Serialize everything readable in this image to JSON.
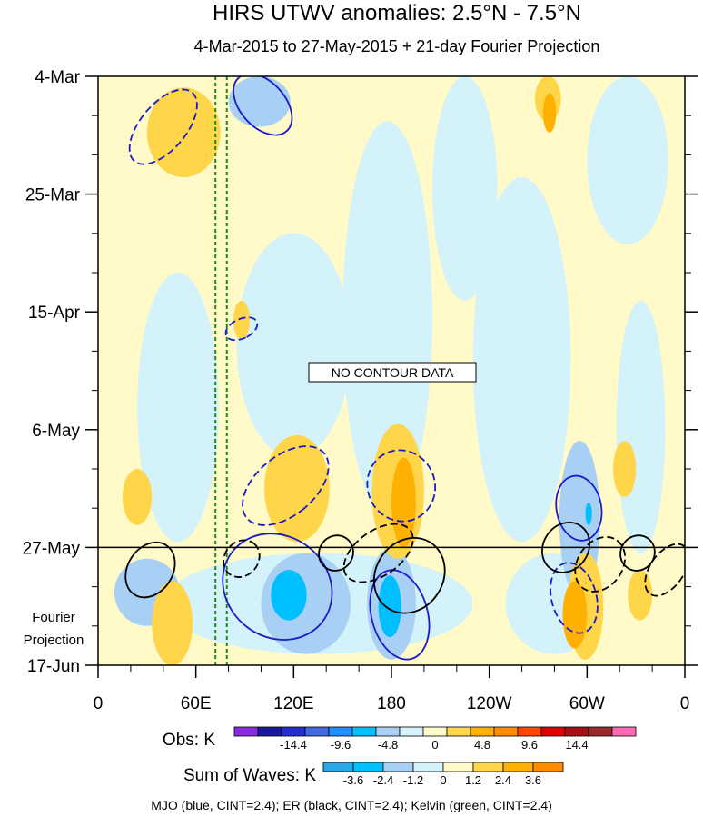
{
  "chart_data": {
    "type": "heatmap",
    "title": "HIRS UTWV anomalies: 2.5°N - 7.5°N",
    "subtitle": "4-Mar-2015 to 27-May-2015 + 21-day Fourier Projection",
    "xlabel": "",
    "ylabel": "",
    "x_ticks": [
      "0",
      "60E",
      "120E",
      "180",
      "120W",
      "60W",
      "0"
    ],
    "x_tick_values": [
      0,
      60,
      120,
      180,
      240,
      300,
      360
    ],
    "xlim": [
      0,
      360
    ],
    "y_ticks": [
      "4-Mar",
      "25-Mar",
      "15-Apr",
      "6-May",
      "27-May",
      "17-Jun"
    ],
    "y_tick_values": [
      0,
      21,
      42,
      63,
      84,
      105
    ],
    "ylim": [
      0,
      105
    ],
    "projection_label_lines": [
      "Fourier",
      "Projection"
    ],
    "projection_start_day": 84,
    "no_data_label": "NO CONTOUR DATA",
    "kelvin_reference_lines_lon": [
      72,
      79
    ],
    "obs_colorbar": {
      "label": "Obs: K",
      "tick_labels": [
        "-14.4",
        "-9.6",
        "-4.8",
        "0",
        "4.8",
        "9.6",
        "14.4"
      ],
      "colors": [
        "#8a2be2",
        "#1a1aa0",
        "#2030d0",
        "#4169e1",
        "#1e90ff",
        "#00bfff",
        "#a8d0f5",
        "#d4f2fa",
        "#fffac8",
        "#ffd54a",
        "#ffb000",
        "#ff8c00",
        "#ff4500",
        "#e00000",
        "#a50f15",
        "#9c2a2a",
        "#ff69b4"
      ]
    },
    "waves_colorbar": {
      "label": "Sum of Waves: K",
      "tick_labels": [
        "-3.6",
        "-2.4",
        "-1.2",
        "0",
        "1.2",
        "2.4",
        "3.6"
      ],
      "colors": [
        "#2aa7e8",
        "#00bfff",
        "#a8d0f5",
        "#d4f2fa",
        "#fffac8",
        "#ffd54a",
        "#ffb000",
        "#ff8c00"
      ]
    },
    "footer": "MJO (blue, CINT=2.4); ER (black, CINT=2.4); Kelvin (green, CINT=2.4)",
    "anomaly_patches": [
      {
        "lon": 0,
        "day": 0,
        "w": 360,
        "h": 105,
        "color": "#fffac8",
        "kind": "base"
      },
      {
        "lon": 24,
        "day": 35,
        "w": 50,
        "h": 48,
        "color": "#d4f2fa"
      },
      {
        "lon": 85,
        "day": 28,
        "w": 70,
        "h": 40,
        "color": "#d4f2fa"
      },
      {
        "lon": 150,
        "day": 8,
        "w": 55,
        "h": 70,
        "color": "#d4f2fa"
      },
      {
        "lon": 205,
        "day": 0,
        "w": 40,
        "h": 40,
        "color": "#d4f2fa"
      },
      {
        "lon": 230,
        "day": 18,
        "w": 60,
        "h": 65,
        "color": "#d4f2fa"
      },
      {
        "lon": 300,
        "day": 0,
        "w": 50,
        "h": 30,
        "color": "#d4f2fa"
      },
      {
        "lon": 318,
        "day": 40,
        "w": 30,
        "h": 45,
        "color": "#d4f2fa"
      },
      {
        "lon": 40,
        "day": 85,
        "w": 190,
        "h": 18,
        "color": "#d4f2fa"
      },
      {
        "lon": 250,
        "day": 85,
        "w": 60,
        "h": 18,
        "color": "#d4f2fa"
      },
      {
        "lon": 10,
        "day": 86,
        "w": 40,
        "h": 12,
        "color": "#a8d0f5"
      },
      {
        "lon": 100,
        "day": 85,
        "w": 55,
        "h": 18,
        "color": "#a8d0f5"
      },
      {
        "lon": 165,
        "day": 84,
        "w": 30,
        "h": 20,
        "color": "#a8d0f5"
      },
      {
        "lon": 283,
        "day": 65,
        "w": 25,
        "h": 28,
        "color": "#a8d0f5"
      },
      {
        "lon": 80,
        "day": 0,
        "w": 38,
        "h": 9,
        "color": "#a8d0f5"
      },
      {
        "lon": 106,
        "day": 88,
        "w": 22,
        "h": 9,
        "color": "#00bfff"
      },
      {
        "lon": 172,
        "day": 89,
        "w": 14,
        "h": 11,
        "color": "#00bfff"
      },
      {
        "lon": 299,
        "day": 76,
        "w": 4,
        "h": 4,
        "color": "#00bfff"
      },
      {
        "lon": 30,
        "day": 2,
        "w": 45,
        "h": 16,
        "color": "#ffd54a"
      },
      {
        "lon": 83,
        "day": 40,
        "w": 10,
        "h": 7,
        "color": "#ffd54a"
      },
      {
        "lon": 102,
        "day": 64,
        "w": 40,
        "h": 19,
        "color": "#ffd54a"
      },
      {
        "lon": 168,
        "day": 62,
        "w": 32,
        "h": 24,
        "color": "#ffd54a"
      },
      {
        "lon": 15,
        "day": 70,
        "w": 18,
        "h": 10,
        "color": "#ffd54a"
      },
      {
        "lon": 33,
        "day": 90,
        "w": 25,
        "h": 15,
        "color": "#ffd54a"
      },
      {
        "lon": 288,
        "day": 85,
        "w": 22,
        "h": 19,
        "color": "#ffd54a"
      },
      {
        "lon": 325,
        "day": 88,
        "w": 15,
        "h": 9,
        "color": "#ffd54a"
      },
      {
        "lon": 316,
        "day": 65,
        "w": 14,
        "h": 10,
        "color": "#ffd54a"
      },
      {
        "lon": 268,
        "day": 0,
        "w": 16,
        "h": 8,
        "color": "#ffd54a"
      },
      {
        "lon": 180,
        "day": 68,
        "w": 15,
        "h": 16,
        "color": "#ffb000"
      },
      {
        "lon": 285,
        "day": 90,
        "w": 15,
        "h": 12,
        "color": "#ffb000"
      },
      {
        "lon": 273,
        "day": 3,
        "w": 8,
        "h": 7,
        "color": "#ffb000"
      }
    ],
    "wave_contours": [
      {
        "wave": "MJO",
        "style": "dashed",
        "lon": 40,
        "day": 9,
        "rx": 14,
        "ry": 8,
        "rot": 40
      },
      {
        "wave": "MJO",
        "style": "solid",
        "lon": 101,
        "day": 5,
        "rx": 22,
        "ry": 4,
        "rot": 48
      },
      {
        "wave": "MJO",
        "style": "dashed",
        "lon": 88,
        "day": 45,
        "rx": 6,
        "ry": 3,
        "rot": 65
      },
      {
        "wave": "MJO",
        "style": "dashed",
        "lon": 115,
        "day": 73,
        "rx": 18,
        "ry": 9,
        "rot": 50
      },
      {
        "wave": "MJO",
        "style": "dashed",
        "lon": 186,
        "day": 73,
        "rx": 22,
        "ry": 6,
        "rot": 68
      },
      {
        "wave": "MJO",
        "style": "solid",
        "lon": 110,
        "day": 91,
        "rx": 35,
        "ry": 9,
        "rot": 38
      },
      {
        "wave": "MJO",
        "style": "solid",
        "lon": 185,
        "day": 96,
        "rx": 28,
        "ry": 5,
        "rot": 75
      },
      {
        "wave": "MJO",
        "style": "solid",
        "lon": 295,
        "day": 77,
        "rx": 20,
        "ry": 4,
        "rot": 80
      },
      {
        "wave": "MJO",
        "style": "dashed",
        "lon": 292,
        "day": 93,
        "rx": 22,
        "ry": 4,
        "rot": 75
      },
      {
        "wave": "ER",
        "style": "solid",
        "lon": 32,
        "day": 88,
        "rx": 18,
        "ry": 4,
        "rot": -57
      },
      {
        "wave": "ER",
        "style": "dashed",
        "lon": 88,
        "day": 86,
        "rx": 12,
        "ry": 3,
        "rot": -50
      },
      {
        "wave": "ER",
        "style": "solid",
        "lon": 146,
        "day": 85,
        "rx": 11,
        "ry": 3,
        "rot": -55
      },
      {
        "wave": "ER",
        "style": "dashed",
        "lon": 172,
        "day": 85,
        "rx": 24,
        "ry": 4,
        "rot": -35
      },
      {
        "wave": "ER",
        "style": "solid",
        "lon": 191,
        "day": 89,
        "rx": 24,
        "ry": 6,
        "rot": -57
      },
      {
        "wave": "ER",
        "style": "solid",
        "lon": 287,
        "day": 84,
        "rx": 16,
        "ry": 4,
        "rot": -55
      },
      {
        "wave": "ER",
        "style": "dashed",
        "lon": 308,
        "day": 87,
        "rx": 18,
        "ry": 4,
        "rot": -55
      },
      {
        "wave": "ER",
        "style": "solid",
        "lon": 331,
        "day": 85,
        "rx": 11,
        "ry": 3,
        "rot": -55
      },
      {
        "wave": "ER",
        "style": "dashed",
        "lon": 349,
        "day": 88,
        "rx": 18,
        "ry": 3,
        "rot": -55
      }
    ]
  }
}
